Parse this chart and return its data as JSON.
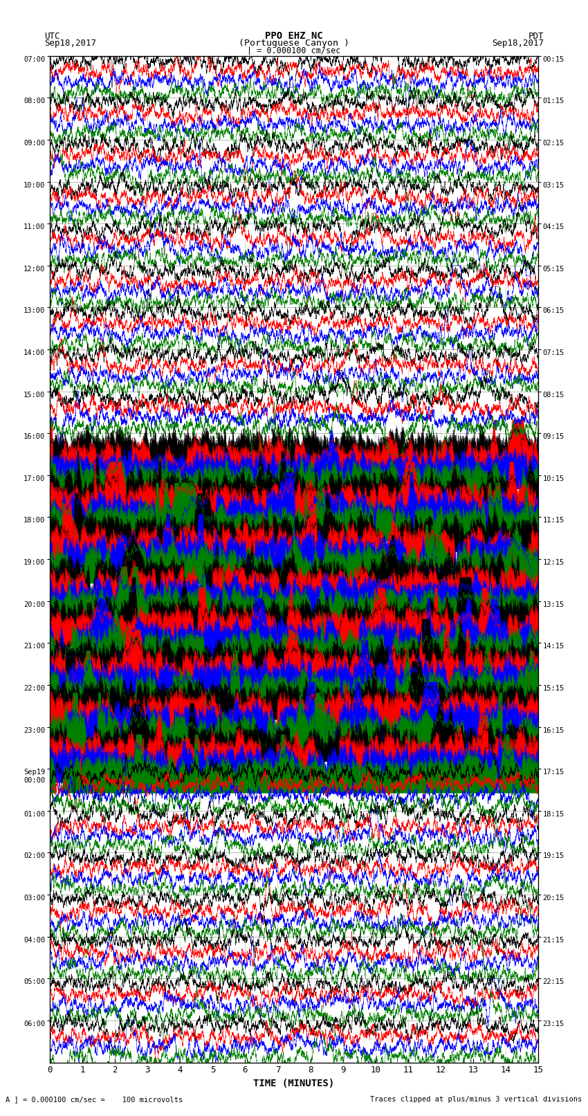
{
  "title_line1": "PPO EHZ NC",
  "title_line2": "(Portuguese Canyon )",
  "scale_label": "| = 0.000100 cm/sec",
  "utc_label": "UTC",
  "utc_date": "Sep18,2017",
  "pdt_label": "PDT",
  "pdt_date": "Sep18,2017",
  "xlabel": "TIME (MINUTES)",
  "footer_left": "A ] = 0.000100 cm/sec =    100 microvolts",
  "footer_right": "Traces clipped at plus/minus 3 vertical divisions",
  "left_times": [
    "07:00",
    "08:00",
    "09:00",
    "10:00",
    "11:00",
    "12:00",
    "13:00",
    "14:00",
    "15:00",
    "16:00",
    "17:00",
    "18:00",
    "19:00",
    "20:00",
    "21:00",
    "22:00",
    "23:00",
    "Sep19\n00:00",
    "01:00",
    "02:00",
    "03:00",
    "04:00",
    "05:00",
    "06:00"
  ],
  "right_times": [
    "00:15",
    "01:15",
    "02:15",
    "03:15",
    "04:15",
    "05:15",
    "06:15",
    "07:15",
    "08:15",
    "09:15",
    "10:15",
    "11:15",
    "12:15",
    "13:15",
    "14:15",
    "15:15",
    "16:15",
    "17:15",
    "18:15",
    "19:15",
    "20:15",
    "21:15",
    "22:15",
    "23:15"
  ],
  "n_rows": 24,
  "colors": [
    "black",
    "red",
    "blue",
    "green"
  ],
  "bg_color": "white",
  "fig_width": 8.5,
  "fig_height": 16.13,
  "dpi": 100,
  "xmin": 0,
  "xmax": 15,
  "xticks": [
    0,
    1,
    2,
    3,
    4,
    5,
    6,
    7,
    8,
    9,
    10,
    11,
    12,
    13,
    14,
    15
  ],
  "high_activity_rows": [
    9,
    10,
    11,
    12,
    13,
    14,
    15,
    16
  ],
  "medium_activity_rows": [
    8,
    17
  ],
  "seed": 42,
  "n_samples": 9000
}
